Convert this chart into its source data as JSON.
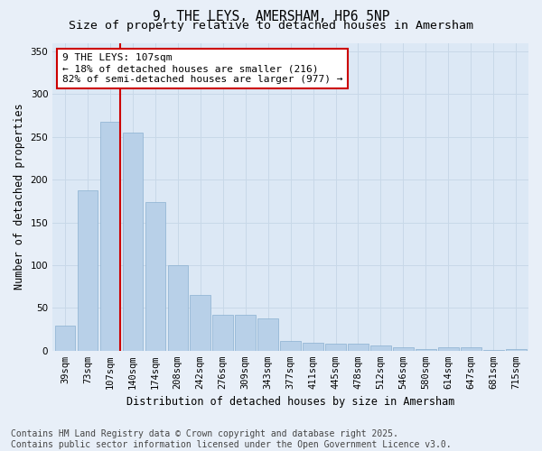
{
  "title_line1": "9, THE LEYS, AMERSHAM, HP6 5NP",
  "title_line2": "Size of property relative to detached houses in Amersham",
  "xlabel": "Distribution of detached houses by size in Amersham",
  "ylabel": "Number of detached properties",
  "categories": [
    "39sqm",
    "73sqm",
    "107sqm",
    "140sqm",
    "174sqm",
    "208sqm",
    "242sqm",
    "276sqm",
    "309sqm",
    "343sqm",
    "377sqm",
    "411sqm",
    "445sqm",
    "478sqm",
    "512sqm",
    "546sqm",
    "580sqm",
    "614sqm",
    "647sqm",
    "681sqm",
    "715sqm"
  ],
  "values": [
    29,
    188,
    268,
    255,
    174,
    100,
    65,
    42,
    42,
    38,
    11,
    9,
    8,
    8,
    6,
    4,
    2,
    4,
    4,
    1,
    2
  ],
  "bar_color": "#b8d0e8",
  "bar_edge_color": "#8ab0d0",
  "vline_x_index": 2,
  "vline_color": "#cc0000",
  "annotation_text": "9 THE LEYS: 107sqm\n← 18% of detached houses are smaller (216)\n82% of semi-detached houses are larger (977) →",
  "annotation_box_color": "#cc0000",
  "annotation_bg": "#ffffff",
  "ylim": [
    0,
    360
  ],
  "yticks": [
    0,
    50,
    100,
    150,
    200,
    250,
    300,
    350
  ],
  "grid_color": "#c8d8e8",
  "plot_bg_color": "#dce8f5",
  "fig_bg_color": "#e8eff8",
  "footer_line1": "Contains HM Land Registry data © Crown copyright and database right 2025.",
  "footer_line2": "Contains public sector information licensed under the Open Government Licence v3.0.",
  "title_fontsize": 10.5,
  "subtitle_fontsize": 9.5,
  "axis_label_fontsize": 8.5,
  "tick_fontsize": 7.5,
  "annotation_fontsize": 8,
  "footer_fontsize": 7
}
